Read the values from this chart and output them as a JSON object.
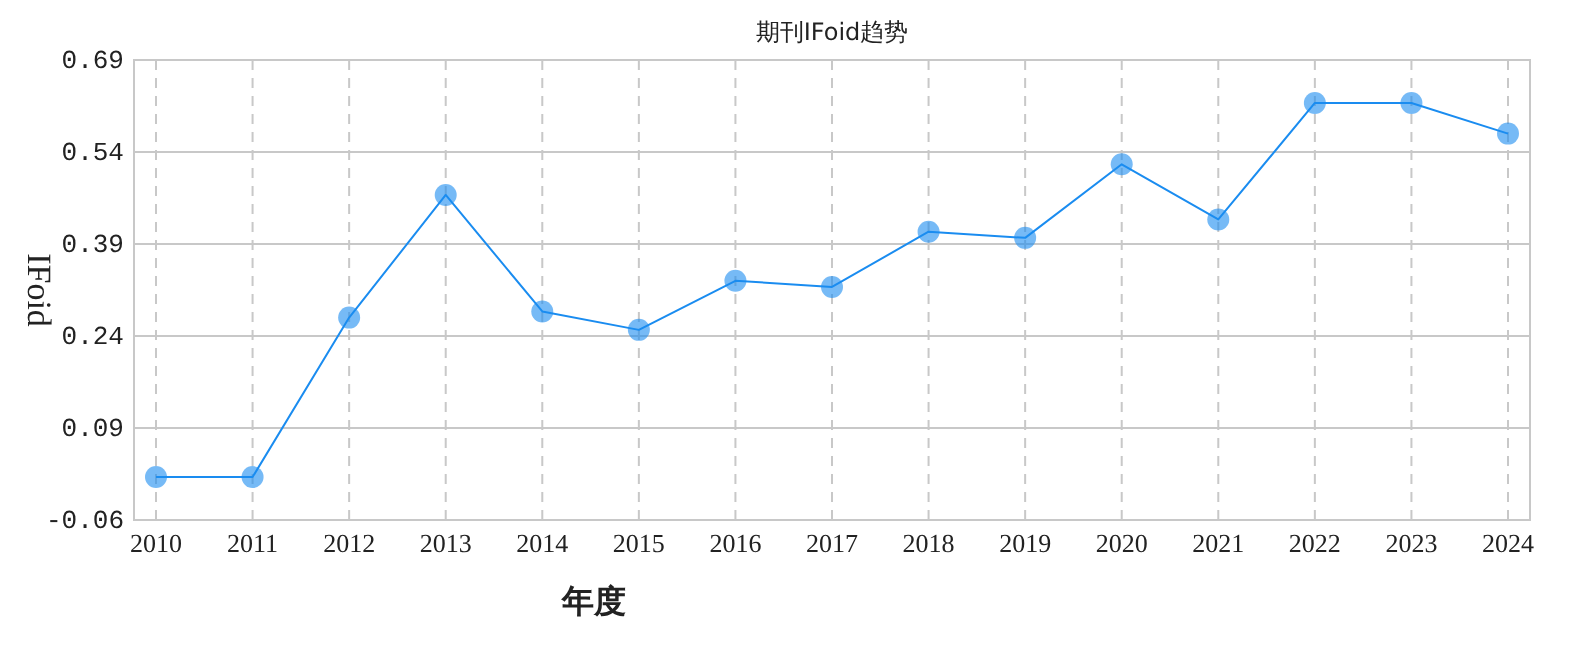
{
  "chart_data": {
    "type": "line",
    "title": "期刊IFoid趋势",
    "xlabel": "年度",
    "ylabel": "IFoid",
    "categories": [
      "2010",
      "2011",
      "2012",
      "2013",
      "2014",
      "2015",
      "2016",
      "2017",
      "2018",
      "2019",
      "2020",
      "2021",
      "2022",
      "2023",
      "2024"
    ],
    "series": [
      {
        "color": "#1a8cf0",
        "values": [
          0.01,
          0.01,
          0.27,
          0.47,
          0.28,
          0.25,
          0.33,
          0.32,
          0.41,
          0.4,
          0.52,
          0.43,
          0.62,
          0.62,
          0.57
        ]
      }
    ],
    "ylim": [
      -0.06,
      0.69
    ],
    "yticks": [
      {
        "value": -0.06,
        "label": "-0.06"
      },
      0.09,
      0.24,
      0.39,
      0.54,
      0.69
    ],
    "grid": true,
    "marker": "circle",
    "line_style": "solid"
  }
}
